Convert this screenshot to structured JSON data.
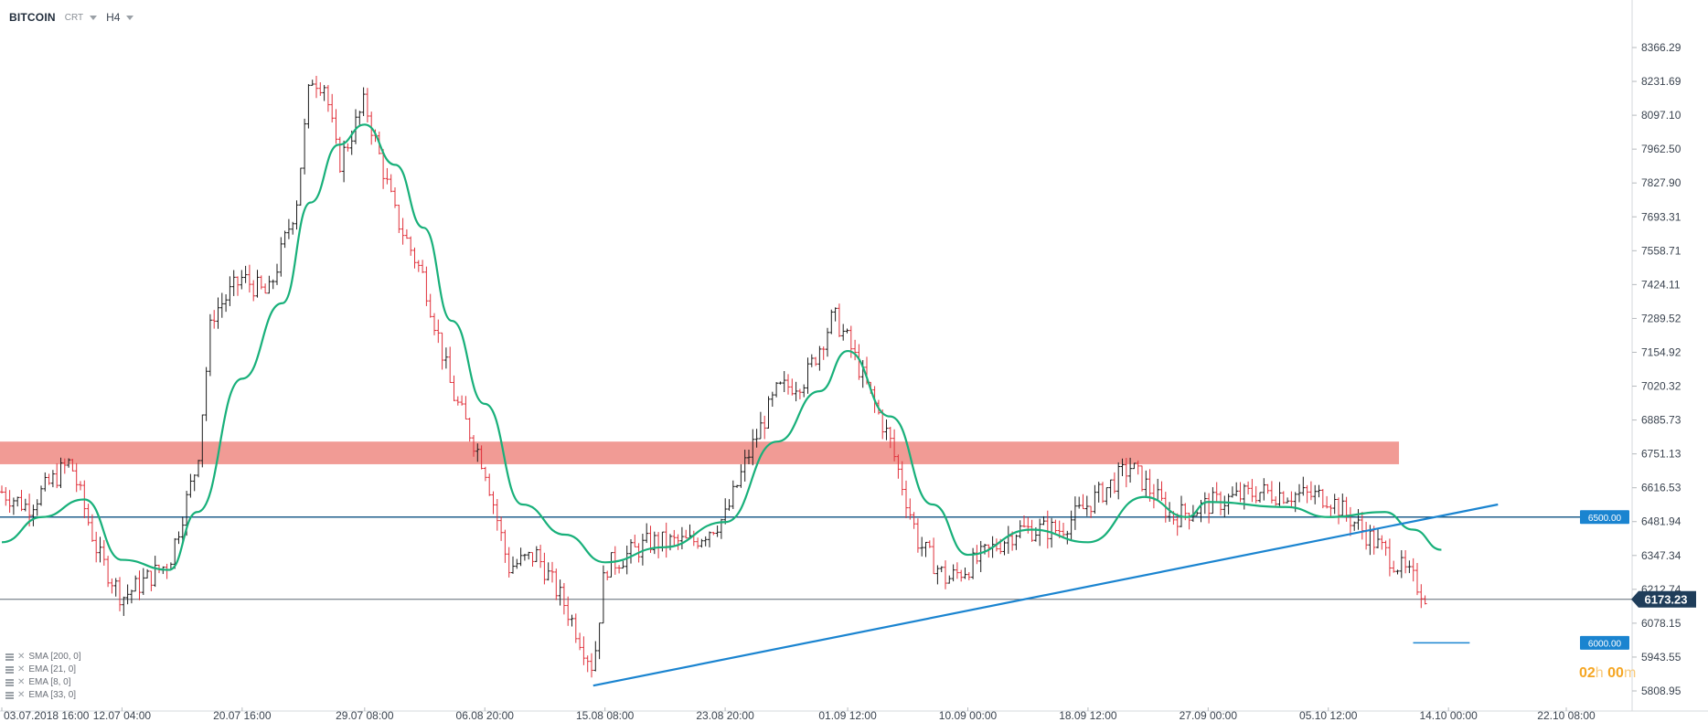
{
  "header": {
    "symbol": "BITCOIN",
    "chart_type": "CRT",
    "timeframe": "H4"
  },
  "indicators": [
    {
      "label": "SMA [200, 0]"
    },
    {
      "label": "EMA [21, 0]"
    },
    {
      "label": "EMA [8, 0]"
    },
    {
      "label": "EMA [33, 0]"
    }
  ],
  "countdown": {
    "hours": "02",
    "h": "h",
    "minutes": "00",
    "m": "m"
  },
  "colors": {
    "candle_up": "#1b1b1b",
    "candle_down": "#e0303a",
    "ema": "#18b07a",
    "trendline": "#1a84d0",
    "horizontal_line": "#1f5f8b",
    "resistance_zone": "#ee8a82",
    "price_tag": "#1f3d5a",
    "level_tag": "#1a84d0"
  },
  "chart_data": {
    "type": "candlestick",
    "title": "",
    "xlabel": "",
    "ylabel": "",
    "y_ticks": [
      "8366.29",
      "8231.69",
      "8097.10",
      "7962.50",
      "7827.90",
      "7693.31",
      "7558.71",
      "7424.11",
      "7289.52",
      "7154.92",
      "7020.32",
      "6885.73",
      "6751.13",
      "6616.53",
      "6481.94",
      "6347.34",
      "6212.74",
      "6078.15",
      "5943.55",
      "5808.95"
    ],
    "x_ticks": [
      "03.07.2018 16:00",
      "12.07 04:00",
      "20.07 16:00",
      "29.07 08:00",
      "06.08 20:00",
      "15.08 08:00",
      "23.08 20:00",
      "01.09 12:00",
      "10.09 00:00",
      "18.09 12:00",
      "27.09 00:00",
      "05.10 12:00",
      "14.10 00:00",
      "22.10 08:00"
    ],
    "ylim": [
      5790,
      8440
    ],
    "price_path": [
      {
        "date": "03.07.2018 16:00",
        "price": 6600
      },
      {
        "date": "05.07",
        "price": 6540
      },
      {
        "date": "08.07",
        "price": 6720
      },
      {
        "date": "10.07",
        "price": 6350
      },
      {
        "date": "12.07 04:00",
        "price": 6180
      },
      {
        "date": "15.07",
        "price": 6320
      },
      {
        "date": "17.07",
        "price": 6720
      },
      {
        "date": "18.07",
        "price": 7300
      },
      {
        "date": "20.07 16:00",
        "price": 7450
      },
      {
        "date": "22.07",
        "price": 7380
      },
      {
        "date": "24.07",
        "price": 7750
      },
      {
        "date": "25.07",
        "price": 8250
      },
      {
        "date": "26.07",
        "price": 8220
      },
      {
        "date": "27.07",
        "price": 7900
      },
      {
        "date": "29.07 08:00",
        "price": 8150
      },
      {
        "date": "31.07",
        "price": 7700
      },
      {
        "date": "02.08",
        "price": 7450
      },
      {
        "date": "04.08",
        "price": 7000
      },
      {
        "date": "06.08 20:00",
        "price": 6700
      },
      {
        "date": "08.08",
        "price": 6300
      },
      {
        "date": "10.08",
        "price": 6350
      },
      {
        "date": "12.08",
        "price": 6150
      },
      {
        "date": "14.08",
        "price": 5900
      },
      {
        "date": "15.08 08:00",
        "price": 6300
      },
      {
        "date": "18.08",
        "price": 6400
      },
      {
        "date": "21.08",
        "price": 6400
      },
      {
        "date": "23.08 20:00",
        "price": 6500
      },
      {
        "date": "25.08",
        "price": 6750
      },
      {
        "date": "27.08",
        "price": 7000
      },
      {
        "date": "29.08",
        "price": 7050
      },
      {
        "date": "31.08",
        "price": 7300
      },
      {
        "date": "01.09 12:00",
        "price": 7200
      },
      {
        "date": "04.09",
        "price": 6800
      },
      {
        "date": "06.09",
        "price": 6400
      },
      {
        "date": "08.09",
        "price": 6250
      },
      {
        "date": "10.09 00:00",
        "price": 6300
      },
      {
        "date": "13.09",
        "price": 6450
      },
      {
        "date": "16.09",
        "price": 6450
      },
      {
        "date": "18.09 12:00",
        "price": 6550
      },
      {
        "date": "21.09",
        "price": 6700
      },
      {
        "date": "24.09",
        "price": 6500
      },
      {
        "date": "27.09 00:00",
        "price": 6550
      },
      {
        "date": "30.09",
        "price": 6600
      },
      {
        "date": "05.10 12:00",
        "price": 6580
      },
      {
        "date": "11.10",
        "price": 6250
      },
      {
        "date": "12.10",
        "price": 6180
      }
    ],
    "ema_line": [
      {
        "date": "03.07.2018 16:00",
        "price": 6400
      },
      {
        "date": "06.07",
        "price": 6500
      },
      {
        "date": "09.07",
        "price": 6570
      },
      {
        "date": "12.07 04:00",
        "price": 6330
      },
      {
        "date": "15.07",
        "price": 6290
      },
      {
        "date": "17.07",
        "price": 6520
      },
      {
        "date": "20.07 16:00",
        "price": 7050
      },
      {
        "date": "23.07",
        "price": 7350
      },
      {
        "date": "25.07",
        "price": 7750
      },
      {
        "date": "27.07",
        "price": 7980
      },
      {
        "date": "29.07 08:00",
        "price": 8060
      },
      {
        "date": "31.07",
        "price": 7900
      },
      {
        "date": "02.08",
        "price": 7650
      },
      {
        "date": "04.08",
        "price": 7280
      },
      {
        "date": "06.08 20:00",
        "price": 6950
      },
      {
        "date": "09.08",
        "price": 6550
      },
      {
        "date": "12.08",
        "price": 6430
      },
      {
        "date": "15.08 08:00",
        "price": 6320
      },
      {
        "date": "19.08",
        "price": 6380
      },
      {
        "date": "23.08 20:00",
        "price": 6480
      },
      {
        "date": "27.08",
        "price": 6800
      },
      {
        "date": "30.08",
        "price": 7000
      },
      {
        "date": "01.09 12:00",
        "price": 7160
      },
      {
        "date": "04.09",
        "price": 6900
      },
      {
        "date": "07.09",
        "price": 6550
      },
      {
        "date": "10.09 00:00",
        "price": 6350
      },
      {
        "date": "14.09",
        "price": 6450
      },
      {
        "date": "18.09 12:00",
        "price": 6400
      },
      {
        "date": "22.09",
        "price": 6580
      },
      {
        "date": "25.09",
        "price": 6500
      },
      {
        "date": "27.09 00:00",
        "price": 6560
      },
      {
        "date": "02.10",
        "price": 6540
      },
      {
        "date": "05.10 12:00",
        "price": 6500
      },
      {
        "date": "09.10",
        "price": 6520
      },
      {
        "date": "11.10",
        "price": 6450
      },
      {
        "date": "13.10",
        "price": 6370
      }
    ],
    "resistance_zone": {
      "low": 6710,
      "high": 6800,
      "from": "02.07",
      "to": "10.10"
    },
    "horizontal_level_6500": {
      "price": 6500,
      "label": "6500.00"
    },
    "current_price": {
      "price": 6173.23,
      "label": "6173.23"
    },
    "level_6000": {
      "price": 6000,
      "label": "6000.00",
      "from": "11.10",
      "to": "15.10"
    },
    "trendline": {
      "from": {
        "date": "14.08",
        "price": 5830
      },
      "to": {
        "date": "17.10",
        "price": 6550
      }
    }
  }
}
